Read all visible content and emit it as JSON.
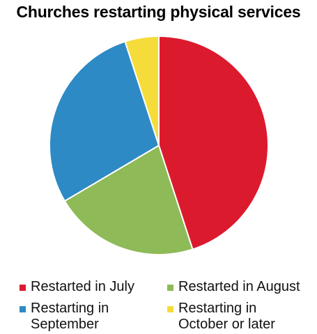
{
  "chart_data": {
    "type": "pie",
    "title": "Churches restarting physical services",
    "series": [
      {
        "name": "Churches restarting physical services",
        "slices": [
          {
            "label": "Restarted in July",
            "value": 45,
            "color": "#dc1a2e"
          },
          {
            "label": "Restarted in August",
            "value": 21.5,
            "color": "#8fba58"
          },
          {
            "label": "Restarting in September",
            "value": 28.5,
            "color": "#2e8ac4"
          },
          {
            "label": "Restarting in October or later",
            "value": 5,
            "color": "#f5dc3a"
          }
        ]
      }
    ],
    "legend": {
      "placement": "bottom",
      "items": [
        {
          "label_lines": [
            "Restarted in July"
          ],
          "color": "#dc1a2e"
        },
        {
          "label_lines": [
            "Restarted in August"
          ],
          "color": "#8fba58"
        },
        {
          "label_lines": [
            "Restarting in",
            "September"
          ],
          "color": "#2e8ac4"
        },
        {
          "label_lines": [
            "Restarting in",
            "October or later"
          ],
          "color": "#f5dc3a"
        }
      ]
    }
  }
}
